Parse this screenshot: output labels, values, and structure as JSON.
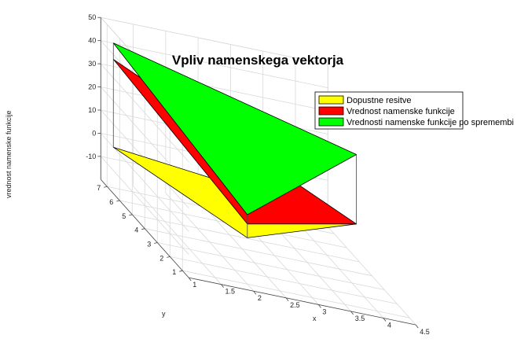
{
  "chart_data": {
    "type": "surface3d",
    "title": "Vpliv namenskega vektorja",
    "xlabel": "x",
    "ylabel": "y",
    "zlabel": "vrednost namenske funkcije",
    "xlim": [
      1,
      4.5
    ],
    "ylim": [
      0.5,
      7.5
    ],
    "zlim": [
      -20,
      50
    ],
    "x_ticks": [
      "1",
      "1.5",
      "2",
      "2.5",
      "3",
      "3.5",
      "4",
      "4.5"
    ],
    "y_ticks": [
      "1",
      "2",
      "3",
      "4",
      "5",
      "6",
      "7"
    ],
    "z_ticks": [
      "-10",
      "0",
      "10",
      "20",
      "30",
      "40",
      "50"
    ],
    "legend_position": "top-right",
    "grid": true,
    "vertices": [
      {
        "x": 1,
        "y": 6.5
      },
      {
        "x": 4.3,
        "y": 4.2
      },
      {
        "x": 2,
        "y": 1
      }
    ],
    "series": [
      {
        "name": "Dopustne resitve",
        "color": "#ffff00",
        "z": [
          0,
          0,
          0
        ]
      },
      {
        "name": "Vrednost namenske funkcije",
        "color": "#ff0000",
        "z": [
          38,
          0,
          6
        ]
      },
      {
        "name": "Vrednosti namenske funkcije po spremembi",
        "color": "#00ff00",
        "z": [
          45,
          30,
          10
        ]
      }
    ]
  }
}
